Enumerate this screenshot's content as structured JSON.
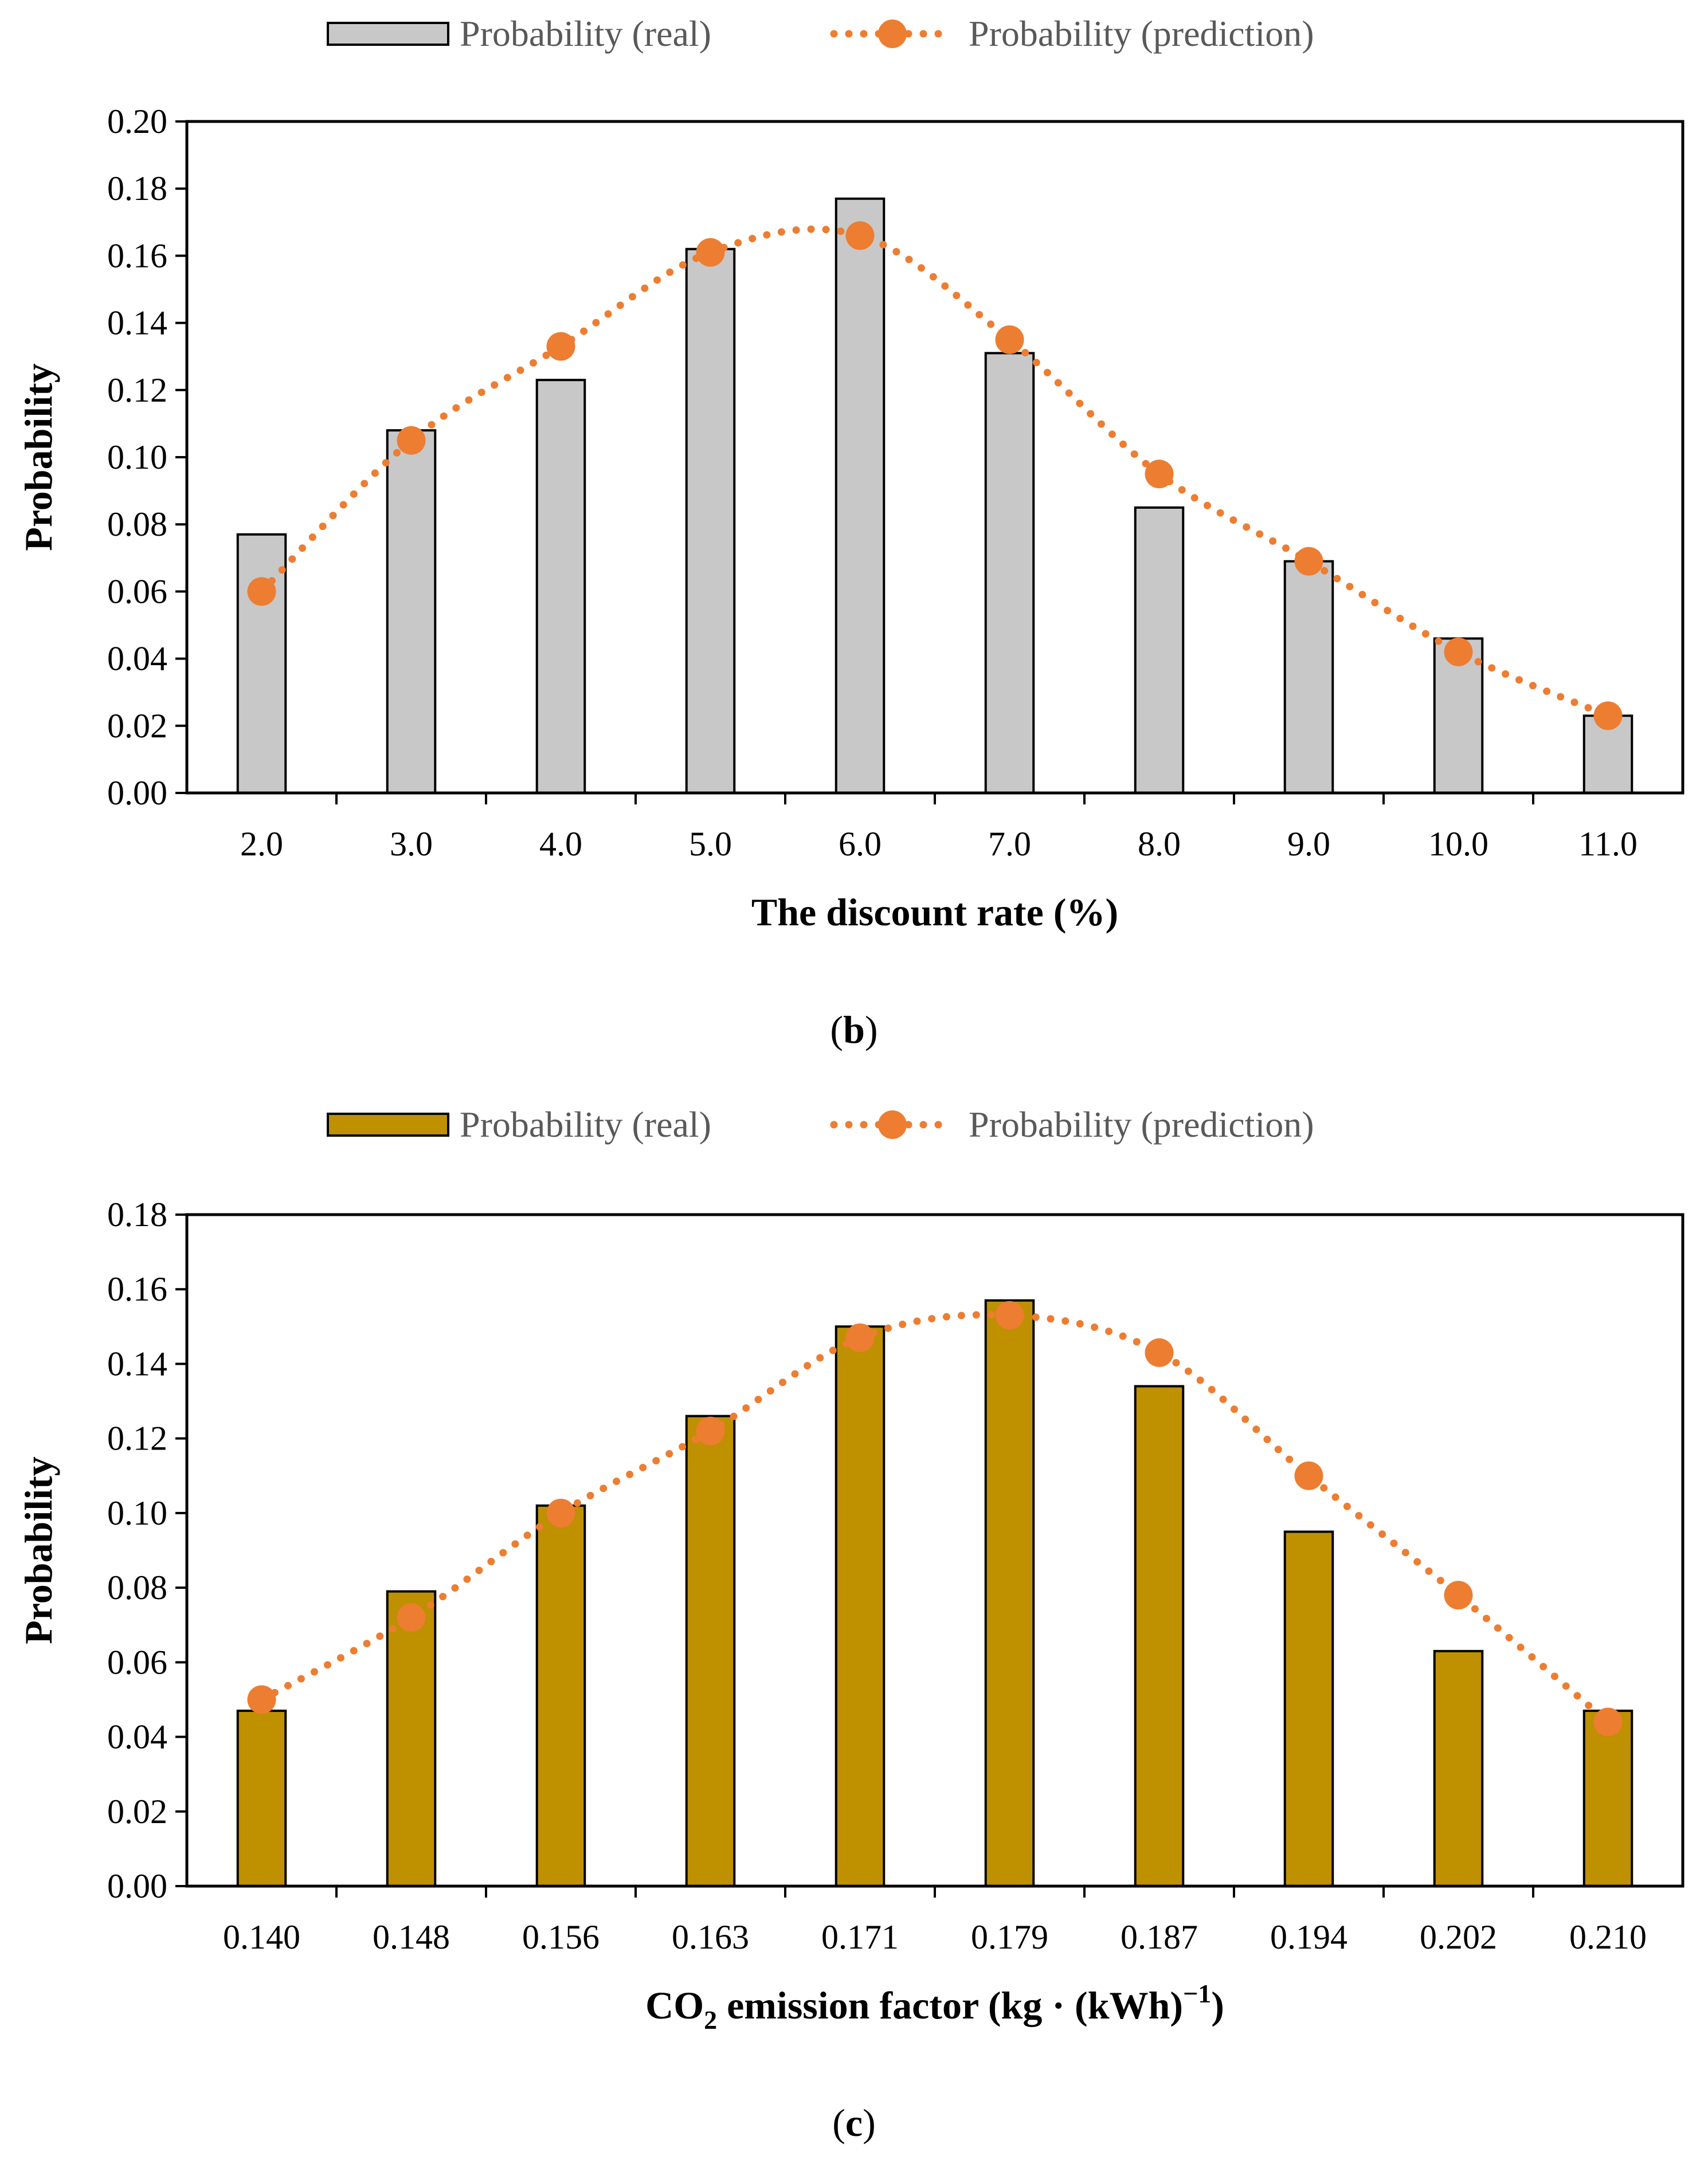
{
  "chart_data": [
    {
      "type": "bar",
      "panel": "b",
      "caption_open": "(",
      "caption_letter": "b",
      "caption_close": ")",
      "legend": {
        "bar": "Probability (real)",
        "line": "Probability (prediction)"
      },
      "categories": [
        "2.0",
        "3.0",
        "4.0",
        "5.0",
        "6.0",
        "7.0",
        "8.0",
        "9.0",
        "10.0",
        "11.0"
      ],
      "series": [
        {
          "name": "Probability (real)",
          "kind": "bar",
          "values": [
            0.077,
            0.108,
            0.123,
            0.162,
            0.177,
            0.131,
            0.085,
            0.069,
            0.046,
            0.023
          ]
        },
        {
          "name": "Probability (prediction)",
          "kind": "line",
          "values": [
            0.06,
            0.105,
            0.133,
            0.161,
            0.166,
            0.135,
            0.095,
            0.069,
            0.042,
            0.023
          ]
        }
      ],
      "ylim": [
        0,
        0.2
      ],
      "yticks": [
        "0.00",
        "0.02",
        "0.04",
        "0.06",
        "0.08",
        "0.10",
        "0.12",
        "0.14",
        "0.16",
        "0.18",
        "0.20"
      ],
      "ylabel": "Probability",
      "xlabel": "The discount rate (%)",
      "colors": {
        "bar_fill": "#c8c8c8",
        "bar_stroke": "#000000",
        "line": "#ed7d31",
        "marker": "#ed7d31"
      }
    },
    {
      "type": "bar",
      "panel": "c",
      "caption_open": "(",
      "caption_letter": "c",
      "caption_close": ")",
      "legend": {
        "bar": "Probability (real)",
        "line": "Probability (prediction)"
      },
      "categories": [
        "0.140",
        "0.148",
        "0.156",
        "0.163",
        "0.171",
        "0.179",
        "0.187",
        "0.194",
        "0.202",
        "0.210"
      ],
      "series": [
        {
          "name": "Probability (real)",
          "kind": "bar",
          "values": [
            0.047,
            0.079,
            0.102,
            0.126,
            0.15,
            0.157,
            0.134,
            0.095,
            0.063,
            0.047
          ]
        },
        {
          "name": "Probability (prediction)",
          "kind": "line",
          "values": [
            0.05,
            0.072,
            0.1,
            0.122,
            0.147,
            0.153,
            0.143,
            0.11,
            0.078,
            0.044
          ]
        }
      ],
      "ylim": [
        0,
        0.18
      ],
      "yticks": [
        "0.00",
        "0.02",
        "0.04",
        "0.06",
        "0.08",
        "0.10",
        "0.12",
        "0.14",
        "0.16",
        "0.18"
      ],
      "ylabel": "Probability",
      "xlabel_main": "CO",
      "xlabel_sub": "2",
      "xlabel_rest": " emission factor (kg · (kWh)",
      "xlabel_sup": "−1",
      "xlabel_end": ")",
      "colors": {
        "bar_fill": "#bf9000",
        "bar_stroke": "#000000",
        "line": "#ed7d31",
        "marker": "#ed7d31"
      }
    }
  ]
}
